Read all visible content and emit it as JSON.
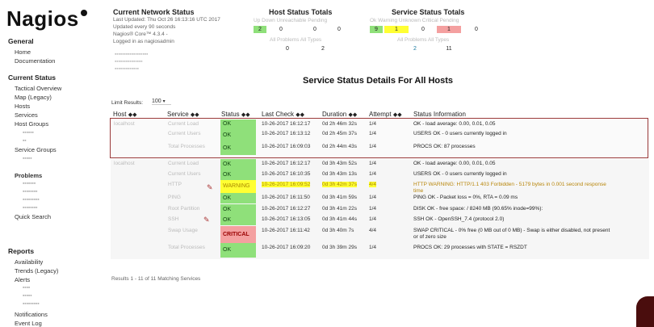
{
  "app": {
    "logo": "Nagios"
  },
  "sidebar": {
    "general_title": "General",
    "general_items": [
      "Home",
      "Documentation"
    ],
    "current_status_title": "Current Status",
    "current_items": [
      "Tactical Overview",
      "Map    (Legacy)",
      "Hosts",
      "Services",
      "Host Groups",
      "Service Groups",
      "Problems",
      "Quick Search"
    ],
    "reports_title": "Reports",
    "reports_items": [
      "Availability",
      "Trends    (Legacy)",
      "Alerts",
      "Notifications",
      "Event Log"
    ]
  },
  "network": {
    "title": "Current Network Status",
    "lines": [
      "Last Updated: Thu Oct 26 16:13:16 UTC 2017",
      "Updated every 90 seconds",
      "Nagios® Core™ 4.3.4 -",
      "Logged in as nagiosadmin"
    ]
  },
  "host_totals": {
    "title": "Host Status Totals",
    "labels": "Up  Down  Unreachable  Pending",
    "counts": [
      "2",
      "0",
      "0",
      "0"
    ],
    "all_label": "All Problems  All Types",
    "all_counts": [
      "0",
      "2"
    ]
  },
  "service_totals": {
    "title": "Service Status Totals",
    "labels": "Ok  Warning  Unknown  Critical  Pending",
    "counts": [
      "9",
      "1",
      "0",
      "1",
      "0"
    ],
    "all_label": "All Problems  All Types",
    "all_counts": [
      "2",
      "11"
    ]
  },
  "main": {
    "title": "Service Status Details For All Hosts",
    "limit_label": "Limit Results:",
    "limit_value": "100",
    "footer": "Results 1 - 11 of 11 Matching Services"
  },
  "table": {
    "headers": [
      "Host",
      "Service",
      "Status",
      "Last Check",
      "Duration",
      "Attempt",
      "Status Information"
    ],
    "rows": [
      {
        "host": "localhost",
        "service": "Current Load",
        "status": "OK",
        "last": "10-26-2017 16:12:17",
        "dur": "0d 2h 46m 32s",
        "att": "1/4",
        "info": "OK - load average: 0.00, 0.01, 0.05"
      },
      {
        "host": "",
        "service": "Current Users",
        "status": "OK",
        "last": "10-26-2017 16:13:12",
        "dur": "0d 2h 45m 37s",
        "att": "1/4",
        "info": "USERS OK - 0 users currently logged in"
      },
      {
        "host": "",
        "service": "Total Processes",
        "status": "OK",
        "last": "10-26-2017 16:09:03",
        "dur": "0d 2h 44m 43s",
        "att": "1/4",
        "info": "PROCS OK: 87 processes"
      },
      {
        "host": "localhost",
        "service": "Current Load",
        "status": "OK",
        "last": "10-26-2017 16:12:17",
        "dur": "0d 3h 43m 52s",
        "att": "1/4",
        "info": "OK - load average: 0.00, 0.01, 0.05"
      },
      {
        "host": "",
        "service": "Current Users",
        "status": "OK",
        "last": "10-26-2017 16:10:35",
        "dur": "0d 3h 43m 13s",
        "att": "1/4",
        "info": "USERS OK - 0 users currently logged in"
      },
      {
        "host": "",
        "service": "HTTP",
        "status": "WARNING",
        "last": "10-26-2017 16:09:52",
        "dur": "0d 3h 42m 37s",
        "att": "4/4",
        "info": "HTTP WARNING: HTTP/1.1 403 Forbidden - 5179 bytes in 0.001 second response",
        "info2": "time"
      },
      {
        "host": "",
        "service": "PING",
        "status": "OK",
        "last": "10-26-2017 16:11:50",
        "dur": "0d 3h 41m 59s",
        "att": "1/4",
        "info": "PING OK - Packet loss = 0%, RTA = 0.09 ms"
      },
      {
        "host": "",
        "service": "Root Partition",
        "status": "OK",
        "last": "10-26-2017 16:12:27",
        "dur": "0d 3h 41m 22s",
        "att": "1/4",
        "info": "DISK OK - free space: / 8240 MB (90.65% inode=99%):"
      },
      {
        "host": "",
        "service": "SSH",
        "status": "OK",
        "last": "10-26-2017 16:13:05",
        "dur": "0d 3h 41m 44s",
        "att": "1/4",
        "info": "SSH OK - OpenSSH_7.4 (protocol 2.0)"
      },
      {
        "host": "",
        "service": "Swap Usage",
        "status": "CRITICAL",
        "last": "10-26-2017 16:11:42",
        "dur": "0d 3h 40m 7s",
        "att": "4/4",
        "info": "SWAP CRITICAL - 0% free (0 MB out of 0 MB) - Swap is either disabled, not present",
        "info2": "or of zero size"
      },
      {
        "host": "",
        "service": "Total Processes",
        "status": "OK",
        "last": "10-26-2017 16:09:20",
        "dur": "0d 3h 39m 29s",
        "att": "1/4",
        "info": "PROCS OK: 29 processes with STATE = RSZDT"
      }
    ]
  },
  "colors": {
    "ok": "#8fe07a",
    "warning": "#ffff33",
    "critical": "#f4a0a0",
    "highlight": "#9a3a3a"
  }
}
